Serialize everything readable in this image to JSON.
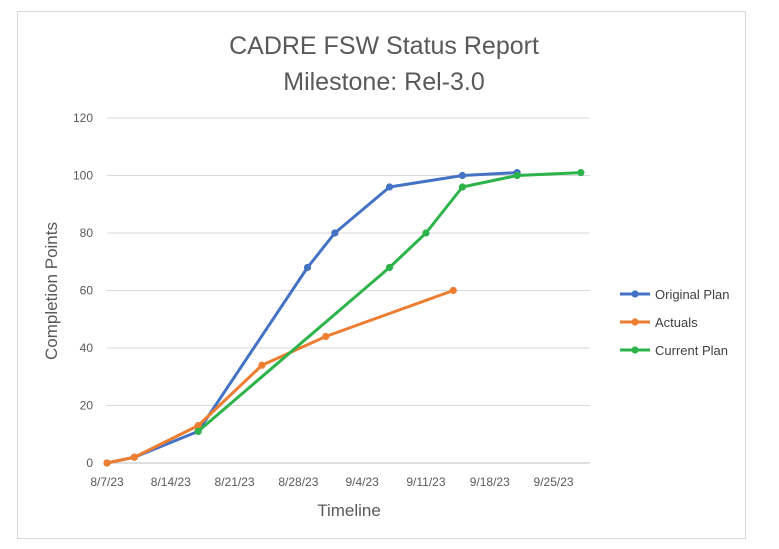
{
  "chart_data": {
    "type": "line",
    "title": "CADRE FSW Status Report",
    "subtitle": "Milestone: Rel-3.0",
    "xlabel": "Timeline",
    "ylabel": "Completion Points",
    "ylim": [
      0,
      120
    ],
    "yticks": [
      "0",
      "20",
      "40",
      "60",
      "80",
      "100",
      "120"
    ],
    "x_tick_labels": [
      "8/7/23",
      "8/14/23",
      "8/21/23",
      "8/28/23",
      "9/4/23",
      "9/11/23",
      "9/18/23",
      "9/25/23"
    ],
    "xlim": [
      "2023-08-07",
      "2023-09-29"
    ],
    "grid": "horizontal",
    "legend_position": "right",
    "series": [
      {
        "name": "Original Plan",
        "color": "#4472C4",
        "x": [
          "2023-08-07",
          "2023-08-10",
          "2023-08-17",
          "2023-08-29",
          "2023-09-01",
          "2023-09-07",
          "2023-09-15",
          "2023-09-21"
        ],
        "y": [
          0,
          2,
          11,
          68,
          80,
          96,
          100,
          101
        ]
      },
      {
        "name": "Actuals",
        "color": "#ED7D31",
        "x": [
          "2023-08-07",
          "2023-08-10",
          "2023-08-17",
          "2023-08-24",
          "2023-08-31",
          "2023-09-14"
        ],
        "y": [
          0,
          2,
          13,
          34,
          44,
          60
        ]
      },
      {
        "name": "Current Plan",
        "color": "#2CB34A",
        "x": [
          "2023-08-17",
          "2023-09-07",
          "2023-09-11",
          "2023-09-15",
          "2023-09-21",
          "2023-09-28"
        ],
        "y": [
          11,
          68,
          80,
          96,
          100,
          101
        ]
      }
    ]
  }
}
